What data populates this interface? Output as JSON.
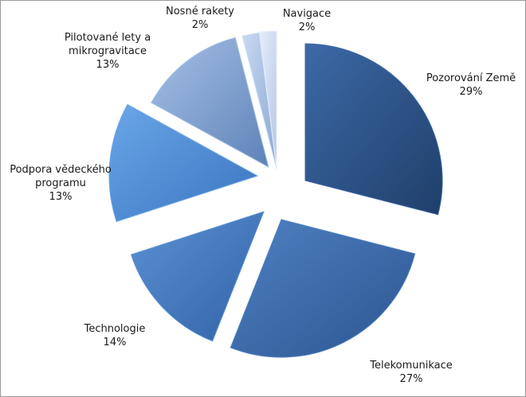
{
  "chart_data": {
    "type": "pie",
    "title": "",
    "slices": [
      {
        "label_lines": [
          "Pozorování Země"
        ],
        "value": 29,
        "value_text": "29%",
        "color_dark": "#1f3f6a",
        "color_light": "#3d69a6"
      },
      {
        "label_lines": [
          "Telekomunikace"
        ],
        "value": 27,
        "value_text": "27%",
        "color_dark": "#2c5591",
        "color_light": "#4f81c2"
      },
      {
        "label_lines": [
          "Technologie"
        ],
        "value": 14,
        "value_text": "14%",
        "color_dark": "#3163a5",
        "color_light": "#5b91d4"
      },
      {
        "label_lines": [
          "Podpora vědeckého",
          "programu"
        ],
        "value": 13,
        "value_text": "13%",
        "color_dark": "#3a74c0",
        "color_light": "#6aa6e8"
      },
      {
        "label_lines": [
          "Pilotované lety a",
          "mikrogravitace"
        ],
        "value": 13,
        "value_text": "13%",
        "color_dark": "#5d82b8",
        "color_light": "#a7c1e6"
      },
      {
        "label_lines": [
          "Nosné rakety"
        ],
        "value": 2,
        "value_text": "2%",
        "color_dark": "#8aa7d2",
        "color_light": "#c9daf2"
      },
      {
        "label_lines": [
          "Navigace"
        ],
        "value": 2,
        "value_text": "2%",
        "color_dark": "#b3c7e6",
        "color_light": "#e6eefa"
      }
    ],
    "legend": "none",
    "exploded": true
  }
}
